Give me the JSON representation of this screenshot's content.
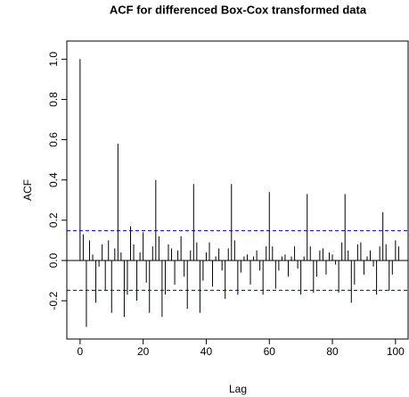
{
  "chart_data": {
    "type": "acf",
    "title": "ACF for differenced Box-Cox transformed data",
    "x_label": "Lag",
    "y_label": "ACF",
    "x": [
      0,
      1,
      2,
      3,
      4,
      5,
      6,
      7,
      8,
      9,
      10,
      11,
      12,
      13,
      14,
      15,
      16,
      17,
      18,
      19,
      20,
      21,
      22,
      23,
      24,
      25,
      26,
      27,
      28,
      29,
      30,
      31,
      32,
      33,
      34,
      35,
      36,
      37,
      38,
      39,
      40,
      41,
      42,
      43,
      44,
      45,
      46,
      47,
      48,
      49,
      50,
      51,
      52,
      53,
      54,
      55,
      56,
      57,
      58,
      59,
      60,
      61,
      62,
      63,
      64,
      65,
      66,
      67,
      68,
      69,
      70,
      71,
      72,
      73,
      74,
      75,
      76,
      77,
      78,
      79,
      80,
      81,
      82,
      83,
      84,
      85,
      86,
      87,
      88,
      89,
      90,
      91,
      92,
      93,
      94,
      95,
      96,
      97,
      98,
      99,
      100,
      101
    ],
    "values": [
      1,
      0.13,
      -0.33,
      0.1,
      0.03,
      -0.21,
      -0.03,
      0.08,
      -0.15,
      0.1,
      -0.26,
      0.06,
      0.58,
      0.04,
      -0.28,
      -0.17,
      0.17,
      0.08,
      -0.2,
      0.04,
      0.14,
      -0.11,
      -0.26,
      0.07,
      0.4,
      0.12,
      -0.28,
      -0.17,
      0.08,
      0.06,
      -0.12,
      0.05,
      0.12,
      -0.08,
      -0.24,
      0.05,
      0.38,
      0.09,
      -0.26,
      -0.1,
      0.04,
      0.09,
      -0.13,
      0.02,
      0.06,
      -0.05,
      -0.19,
      0.06,
      0.38,
      0.1,
      -0.17,
      -0.06,
      0.02,
      0.03,
      -0.12,
      0.02,
      0.05,
      -0.05,
      -0.17,
      0.07,
      0.34,
      0.07,
      -0.14,
      -0.05,
      0.02,
      0.03,
      -0.08,
      0.02,
      0.07,
      -0.04,
      -0.17,
      0.02,
      0.33,
      0.07,
      -0.16,
      -0.08,
      0.05,
      0.06,
      -0.07,
      0.04,
      0.03,
      -0.02,
      -0.16,
      0.09,
      0.33,
      0.05,
      -0.21,
      -0.12,
      0.08,
      0.09,
      -0.07,
      0.02,
      0.05,
      -0.03,
      -0.17,
      0.07,
      0.24,
      0.08,
      -0.15,
      -0.07,
      0.1,
      0.07
    ],
    "color": "#000000",
    "confidence_bounds": [
      0.148,
      -0.148
    ],
    "confidence_color": "#0000cc",
    "xlim": [
      -4.2,
      104.0
    ],
    "xticks": [
      0,
      20,
      40,
      60,
      80,
      100
    ],
    "ylim": [
      -0.39,
      1.09
    ],
    "yticks": [
      -0.2,
      {
        "value": 0,
        "label": "0.0"
      },
      0.2,
      0.4,
      0.6,
      0.8,
      {
        "value": 1,
        "label": "1.0"
      }
    ]
  }
}
